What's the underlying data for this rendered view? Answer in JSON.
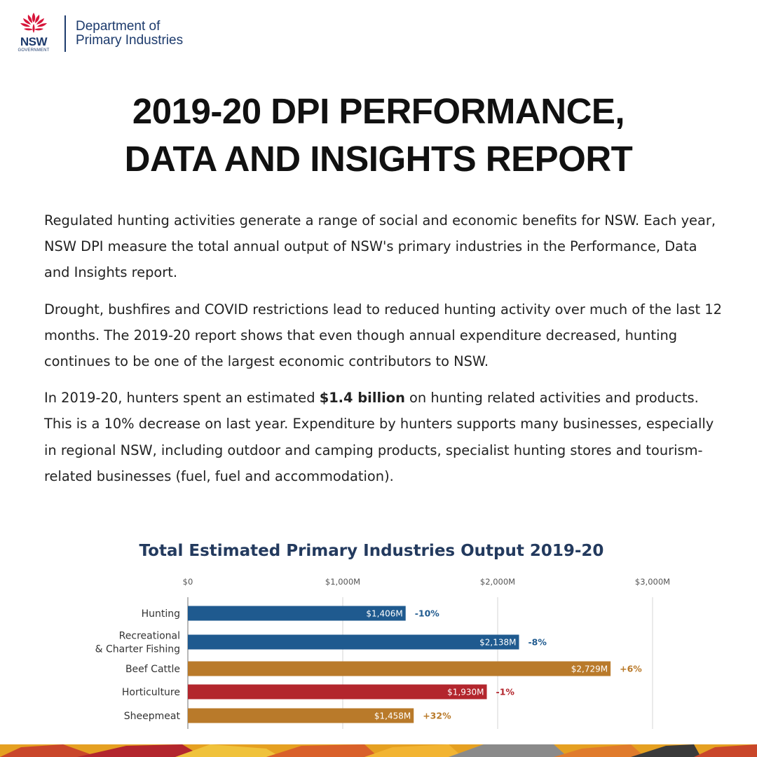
{
  "header": {
    "logo_text": "NSW",
    "logo_subtext": "GOVERNMENT",
    "dept_line1": "Department of",
    "dept_line2": "Primary Industries"
  },
  "title": {
    "line1": "2019-20 DPI PERFORMANCE,",
    "line2": "DATA AND INSIGHTS REPORT"
  },
  "body": {
    "p1": "Regulated hunting activities generate a range of social and economic benefits for NSW. Each year, NSW DPI measure the total annual output of NSW's primary industries in the Performance, Data and Insights report.",
    "p2": "Drought, bushfires and COVID restrictions lead to reduced hunting activity over much of the last 12 months. The 2019-20 report shows that even though annual expenditure decreased, hunting continues to be one of the largest economic contributors to NSW.",
    "p3_before": "In 2019-20, hunters spent an estimated ",
    "p3_bold": "$1.4 billion",
    "p3_after": " on hunting related activities and products. This is a 10% decrease on last year. Expenditure by hunters supports many businesses, especially in regional NSW, including outdoor and camping products, specialist hunting stores and tourism-related businesses (fuel, fuel and accommodation)."
  },
  "chart_data": {
    "type": "bar",
    "orientation": "horizontal",
    "title": "Total Estimated Primary Industries Output 2019-20",
    "xlim": [
      0,
      3000
    ],
    "x_ticks": [
      0,
      1000,
      2000,
      3000
    ],
    "x_tick_labels": [
      "$0",
      "$1,000M",
      "$2,000M",
      "$3,000M"
    ],
    "categories": [
      [
        "Hunting"
      ],
      [
        "Recreational",
        "& Charter Fishing"
      ],
      [
        "Beef Cattle"
      ],
      [
        "Horticulture"
      ],
      [
        "Sheepmeat"
      ]
    ],
    "values": [
      1406,
      2138,
      2729,
      1930,
      1458
    ],
    "value_labels": [
      "$1,406M",
      "$2,138M",
      "$2,729M",
      "$1,930M",
      "$1,458M"
    ],
    "changes": [
      "-10%",
      "-8%",
      "+6%",
      "-1%",
      "+32%"
    ],
    "colors": [
      "#1f5a8f",
      "#1f5a8f",
      "#b97a2a",
      "#b3262d",
      "#b97a2a"
    ],
    "change_colors": [
      "#1f5a8f",
      "#1f5a8f",
      "#b97a2a",
      "#b3262d",
      "#b97a2a"
    ],
    "grid": true
  },
  "colors": {
    "brand_navy": "#1d3b6d",
    "waratah_red": "#d7153a",
    "title_navy": "#233a5e"
  }
}
